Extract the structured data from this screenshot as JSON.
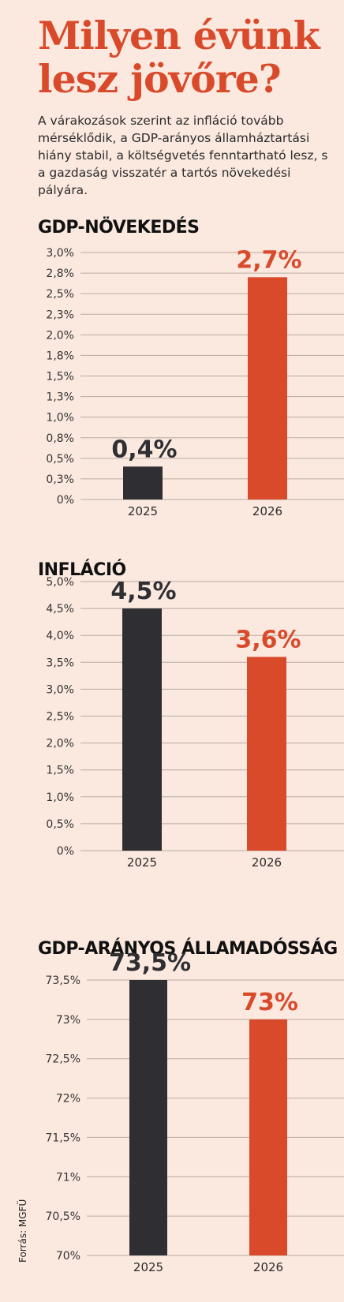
{
  "header": {
    "title": "Milyen évünk lesz jövőre?",
    "intro": "A várakozások szerint az infláció tovább mérséklődik, a GDP-arányos államháztartási hiány stabil, a költségvetés fenntartható lesz, s a gazdaság visszatér a tartós növekedési pályára."
  },
  "colors": {
    "dark": "#2f2f33",
    "accent": "#d94a2b",
    "grid": "#b7aaa3",
    "background": "#fbe9df"
  },
  "chart_data": [
    {
      "type": "bar",
      "title": "GDP-NÖVEKEDÉS",
      "categories": [
        "2025",
        "2026"
      ],
      "values": [
        0.4,
        2.7
      ],
      "value_labels": [
        "0,4%",
        "2,7%"
      ],
      "ylim": [
        0,
        3.0
      ],
      "yticks": [
        0,
        0.25,
        0.5,
        0.75,
        1.0,
        1.25,
        1.5,
        1.75,
        2.0,
        2.25,
        2.5,
        2.75,
        3.0
      ],
      "ytick_labels": [
        "0%",
        "0,3%",
        "0,5%",
        "0,8%",
        "1,0%",
        "1,3%",
        "1,5%",
        "1,8%",
        "2,0%",
        "2,3%",
        "2,5%",
        "2,8%",
        "3,0%"
      ],
      "grid": true
    },
    {
      "type": "bar",
      "title": "INFLÁCIÓ",
      "categories": [
        "2025",
        "2026"
      ],
      "values": [
        4.5,
        3.6
      ],
      "value_labels": [
        "4,5%",
        "3,6%"
      ],
      "ylim": [
        0,
        5.0
      ],
      "yticks": [
        0,
        0.5,
        1.0,
        1.5,
        2.0,
        2.5,
        3.0,
        3.5,
        4.0,
        4.5,
        5.0
      ],
      "ytick_labels": [
        "0%",
        "0,5%",
        "1,0%",
        "1,5%",
        "2,0%",
        "2,5%",
        "3,0%",
        "3,5%",
        "4,0%",
        "4,5%",
        "5,0%"
      ],
      "grid": true
    },
    {
      "type": "bar",
      "title": "GDP-ARÁNYOS ÁLLAMADÓSSÁG",
      "categories": [
        "2025",
        "2026"
      ],
      "values": [
        73.5,
        73
      ],
      "value_labels": [
        "73,5%",
        "73%"
      ],
      "ylim": [
        70,
        73.5
      ],
      "yticks": [
        70,
        70.5,
        71,
        71.5,
        72,
        72.5,
        73,
        73.5
      ],
      "ytick_labels": [
        "70%",
        "70,5%",
        "71%",
        "71,5%",
        "72%",
        "72,5%",
        "73%",
        "73,5%"
      ],
      "grid": true
    }
  ],
  "source": "Forrás: MGFÜ"
}
